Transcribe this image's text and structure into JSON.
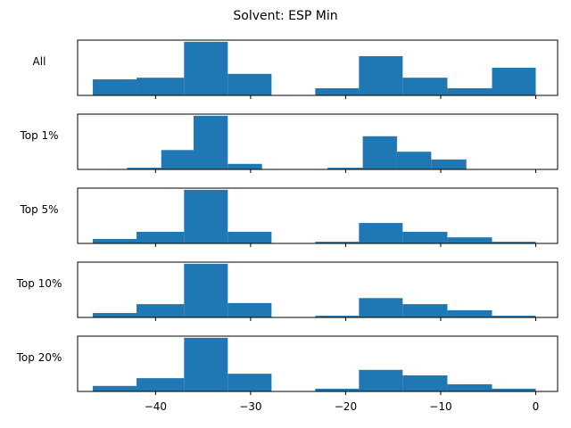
{
  "chart_data": {
    "type": "bar",
    "title": "Solvent: ESP Min",
    "xlim": [
      -48.2,
      2.3
    ],
    "x_ticks": [
      -40,
      -30,
      -20,
      -10,
      0
    ],
    "x_tick_labels": [
      "−40",
      "−30",
      "−20",
      "−10",
      "0"
    ],
    "bar_color": "#1f77b4",
    "grid": false,
    "panels": [
      {
        "label": "All",
        "bins": [
          {
            "x0": -46.6,
            "x1": -42.0,
            "value": 0.29
          },
          {
            "x0": -42.0,
            "x1": -37.0,
            "value": 0.32
          },
          {
            "x0": -37.0,
            "x1": -32.4,
            "value": 0.97
          },
          {
            "x0": -32.4,
            "x1": -27.8,
            "value": 0.39
          },
          {
            "x0": -23.2,
            "x1": -18.6,
            "value": 0.13
          },
          {
            "x0": -18.6,
            "x1": -14.0,
            "value": 0.71
          },
          {
            "x0": -14.0,
            "x1": -9.3,
            "value": 0.32
          },
          {
            "x0": -9.3,
            "x1": -4.6,
            "value": 0.13
          },
          {
            "x0": -4.6,
            "x1": 0.0,
            "value": 0.5
          }
        ]
      },
      {
        "label": "Top 1%",
        "bins": [
          {
            "x0": -43.0,
            "x1": -39.4,
            "value": 0.03
          },
          {
            "x0": -39.4,
            "x1": -36.0,
            "value": 0.35
          },
          {
            "x0": -36.0,
            "x1": -32.4,
            "value": 0.97
          },
          {
            "x0": -32.4,
            "x1": -28.8,
            "value": 0.1
          },
          {
            "x0": -21.9,
            "x1": -18.2,
            "value": 0.03
          },
          {
            "x0": -18.2,
            "x1": -14.6,
            "value": 0.6
          },
          {
            "x0": -14.6,
            "x1": -11.0,
            "value": 0.32
          },
          {
            "x0": -11.0,
            "x1": -7.3,
            "value": 0.18
          }
        ]
      },
      {
        "label": "Top 5%",
        "bins": [
          {
            "x0": -46.6,
            "x1": -42.0,
            "value": 0.08
          },
          {
            "x0": -42.0,
            "x1": -37.0,
            "value": 0.21
          },
          {
            "x0": -37.0,
            "x1": -32.4,
            "value": 0.97
          },
          {
            "x0": -32.4,
            "x1": -27.8,
            "value": 0.21
          },
          {
            "x0": -23.2,
            "x1": -18.6,
            "value": 0.03
          },
          {
            "x0": -18.6,
            "x1": -14.0,
            "value": 0.37
          },
          {
            "x0": -14.0,
            "x1": -9.3,
            "value": 0.21
          },
          {
            "x0": -9.3,
            "x1": -4.6,
            "value": 0.11
          },
          {
            "x0": -4.6,
            "x1": 0.0,
            "value": 0.03
          }
        ]
      },
      {
        "label": "Top 10%",
        "bins": [
          {
            "x0": -46.6,
            "x1": -42.0,
            "value": 0.08
          },
          {
            "x0": -42.0,
            "x1": -37.0,
            "value": 0.24
          },
          {
            "x0": -37.0,
            "x1": -32.4,
            "value": 0.97
          },
          {
            "x0": -32.4,
            "x1": -27.8,
            "value": 0.26
          },
          {
            "x0": -23.2,
            "x1": -18.6,
            "value": 0.03
          },
          {
            "x0": -18.6,
            "x1": -14.0,
            "value": 0.35
          },
          {
            "x0": -14.0,
            "x1": -9.3,
            "value": 0.24
          },
          {
            "x0": -9.3,
            "x1": -4.6,
            "value": 0.13
          },
          {
            "x0": -4.6,
            "x1": 0.0,
            "value": 0.03
          }
        ]
      },
      {
        "label": "Top 20%",
        "bins": [
          {
            "x0": -46.6,
            "x1": -42.0,
            "value": 0.1
          },
          {
            "x0": -42.0,
            "x1": -37.0,
            "value": 0.24
          },
          {
            "x0": -37.0,
            "x1": -32.4,
            "value": 0.97
          },
          {
            "x0": -32.4,
            "x1": -27.8,
            "value": 0.32
          },
          {
            "x0": -23.2,
            "x1": -18.6,
            "value": 0.05
          },
          {
            "x0": -18.6,
            "x1": -14.0,
            "value": 0.39
          },
          {
            "x0": -14.0,
            "x1": -9.3,
            "value": 0.29
          },
          {
            "x0": -9.3,
            "x1": -4.6,
            "value": 0.13
          },
          {
            "x0": -4.6,
            "x1": 0.0,
            "value": 0.05
          }
        ]
      }
    ]
  }
}
